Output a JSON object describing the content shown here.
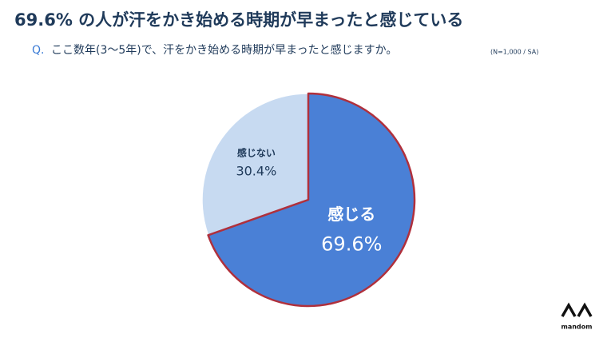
{
  "chart_data": {
    "type": "pie",
    "title": "69.6% の人が汗をかき始める時期が早まったと感じている",
    "question_label": "Q.",
    "subtitle": "ここ数年(3～5年)で、汗をかき始める時期が早まったと感じますか。",
    "note": "(N=1,000 / SA)",
    "categories": [
      "感じる",
      "感じない"
    ],
    "values": [
      69.6,
      30.4
    ],
    "value_labels": [
      "69.6%",
      "30.4%"
    ],
    "colors": [
      "#4a80d6",
      "#c7daf1"
    ],
    "label_colors": [
      "#ffffff",
      "#1f3a5a"
    ],
    "highlight_stroke": "#b0303c",
    "logo_text": "mandom"
  }
}
